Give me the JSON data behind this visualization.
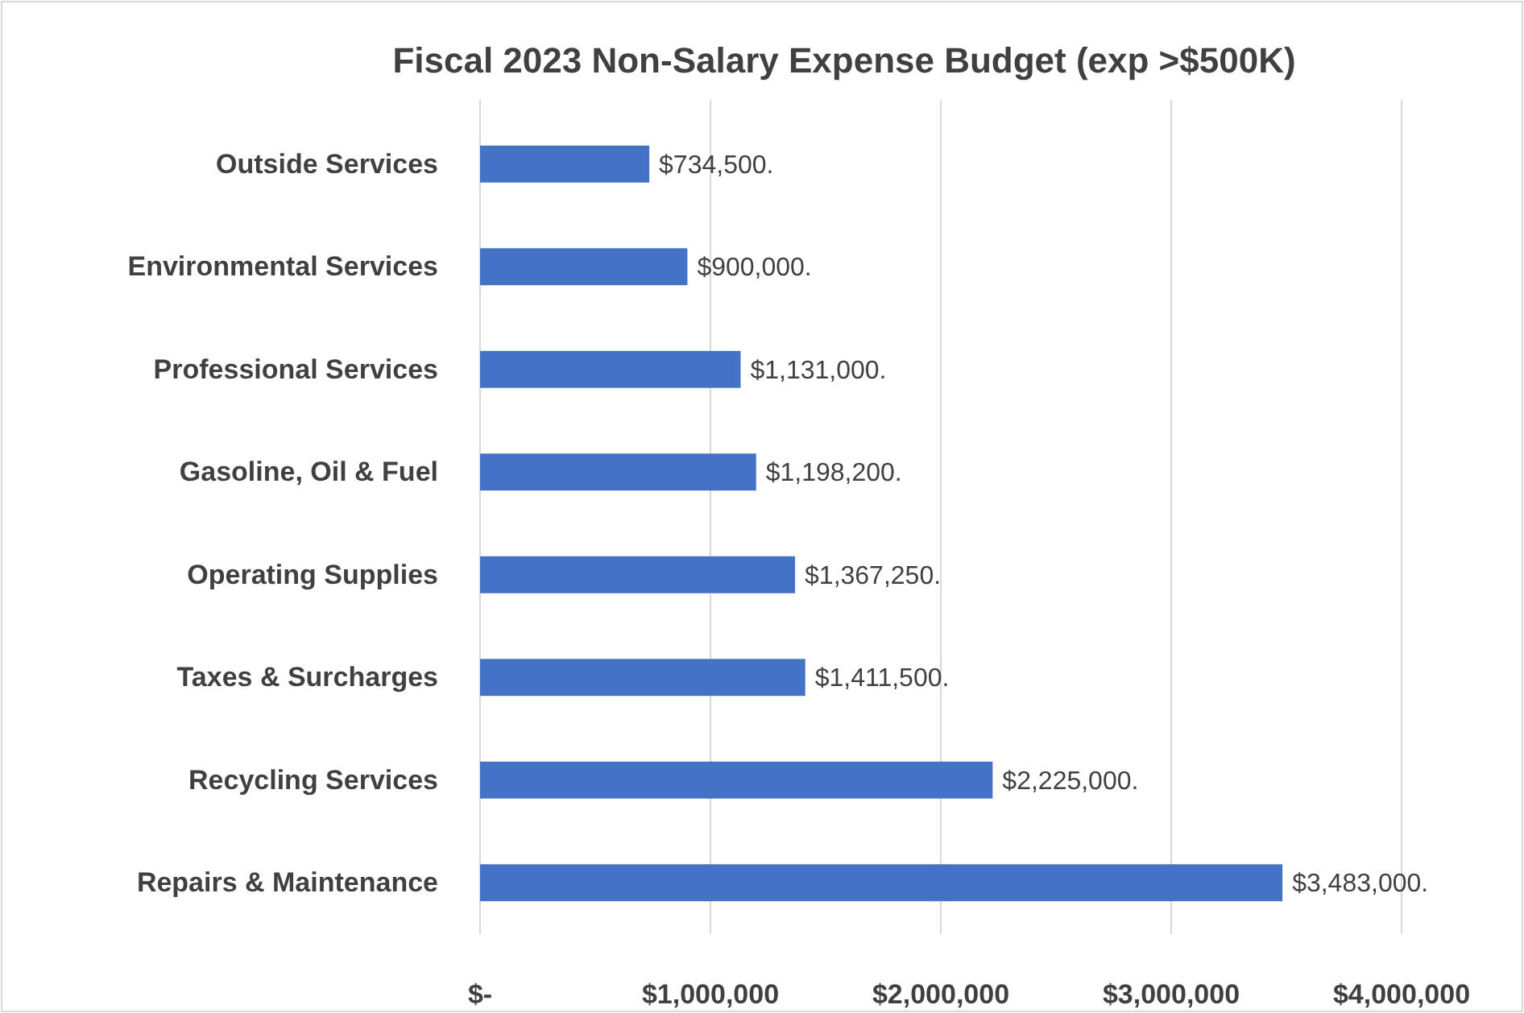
{
  "chart_data": {
    "type": "bar",
    "orientation": "horizontal",
    "title": "Fiscal 2023 Non-Salary Expense Budget (exp >$500K)",
    "categories": [
      "Outside Services",
      "Environmental Services",
      "Professional Services",
      "Gasoline, Oil & Fuel",
      "Operating Supplies",
      "Taxes & Surcharges",
      "Recycling Services",
      "Repairs & Maintenance"
    ],
    "values": [
      734500,
      900000,
      1131000,
      1198200,
      1367250,
      1411500,
      2225000,
      3483000
    ],
    "value_labels": [
      "$734,500.",
      "$900,000.",
      "$1,131,000.",
      "$1,198,200.",
      "$1,367,250.",
      "$1,411,500.",
      "$2,225,000.",
      "$3,483,000."
    ],
    "color": "#4472c4",
    "xlim": [
      0,
      4000000
    ],
    "xticks": [
      {
        "value": 0,
        "label": "$-"
      },
      {
        "value": 1000000,
        "label": "$1,000,000"
      },
      {
        "value": 2000000,
        "label": "$2,000,000"
      },
      {
        "value": 3000000,
        "label": "$3,000,000"
      },
      {
        "value": 4000000,
        "label": "$4,000,000"
      }
    ],
    "grid": "x"
  }
}
